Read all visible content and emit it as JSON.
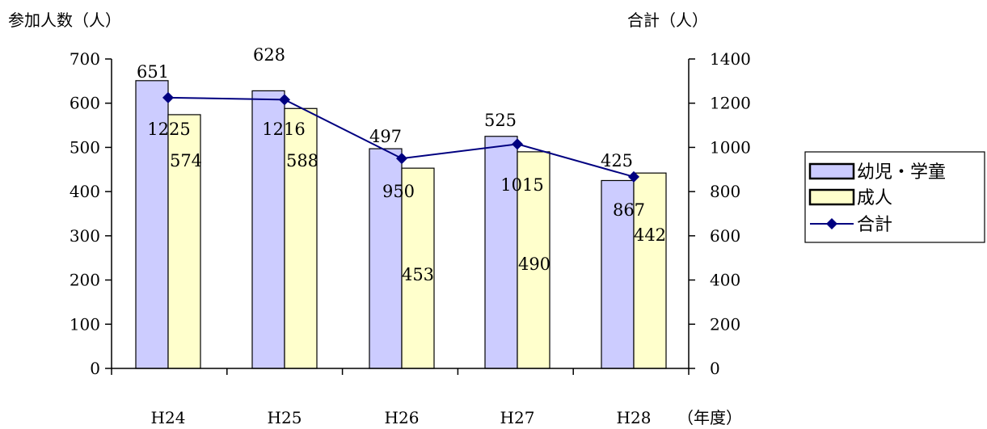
{
  "chart_data": {
    "type": "bar",
    "y_left_label": "参加人数（人）",
    "y_right_label": "合計（人）",
    "x_unit_label": "（年度）",
    "categories": [
      "H24",
      "H25",
      "H26",
      "H27",
      "H28"
    ],
    "ylim_left": [
      0,
      700
    ],
    "ylim_right": [
      0,
      1400
    ],
    "yticks_left": [
      0,
      100,
      200,
      300,
      400,
      500,
      600,
      700
    ],
    "yticks_right": [
      0,
      200,
      400,
      600,
      800,
      1000,
      1200,
      1400
    ],
    "grid": false,
    "legend_position": "right",
    "series": [
      {
        "name": "幼児・学童",
        "kind": "bar",
        "axis": "left",
        "color": "#ccccff",
        "values": [
          651,
          628,
          497,
          525,
          425
        ]
      },
      {
        "name": "成人",
        "kind": "bar",
        "axis": "left",
        "color": "#ffffcc",
        "values": [
          574,
          588,
          453,
          490,
          442
        ]
      },
      {
        "name": "合計",
        "kind": "line",
        "axis": "right",
        "color": "#000080",
        "marker": "diamond",
        "values": [
          1225,
          1216,
          950,
          1015,
          867
        ]
      }
    ]
  }
}
